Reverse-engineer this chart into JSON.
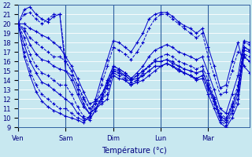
{
  "xlabel": "Température (°c)",
  "bg_color": "#c8e8f0",
  "grid_color": "#b0d0e0",
  "line_color": "#0000cc",
  "ylim": [
    9,
    22
  ],
  "yticks": [
    9,
    10,
    11,
    12,
    13,
    14,
    15,
    16,
    17,
    18,
    19,
    20,
    21,
    22
  ],
  "day_labels": [
    "Ven",
    "Sam",
    "Dim",
    "Lun",
    "Mar"
  ],
  "day_ticks_x": [
    0,
    8,
    16,
    24,
    32
  ],
  "xlim": [
    0,
    39
  ],
  "series": [
    [
      20.0,
      21.5,
      21.8,
      21.0,
      20.5,
      20.2,
      20.8,
      21.0,
      15.0,
      14.5,
      13.0,
      11.5,
      10.5,
      11.0,
      11.5,
      12.0,
      14.5,
      14.2,
      14.0,
      13.5,
      13.8,
      14.0,
      14.5,
      15.0,
      15.5,
      15.8,
      15.5,
      15.2,
      14.8,
      14.5,
      14.0,
      14.2,
      12.5,
      11.0,
      9.5,
      9.0,
      10.0,
      11.5,
      16.5,
      16.0
    ],
    [
      20.0,
      21.0,
      21.2,
      20.5,
      20.0,
      20.5,
      21.0,
      21.0,
      16.0,
      15.0,
      13.5,
      12.0,
      11.0,
      11.5,
      12.0,
      12.5,
      15.0,
      14.8,
      14.2,
      13.8,
      14.0,
      14.5,
      15.0,
      15.5,
      15.5,
      15.8,
      15.5,
      15.0,
      14.8,
      14.5,
      14.2,
      14.5,
      13.0,
      11.5,
      9.8,
      9.2,
      10.5,
      12.0,
      16.8,
      16.5
    ],
    [
      20.0,
      20.0,
      19.5,
      19.2,
      18.8,
      18.5,
      18.0,
      17.5,
      16.5,
      15.5,
      14.2,
      12.8,
      11.5,
      11.8,
      12.5,
      13.5,
      15.2,
      15.0,
      14.5,
      14.0,
      14.2,
      14.5,
      15.0,
      15.5,
      15.5,
      15.8,
      15.5,
      15.0,
      14.8,
      14.5,
      14.2,
      14.5,
      13.2,
      11.8,
      10.0,
      9.5,
      10.8,
      12.5,
      17.2,
      17.0
    ],
    [
      20.0,
      19.5,
      18.5,
      18.0,
      17.5,
      17.0,
      16.5,
      16.5,
      16.0,
      15.0,
      13.5,
      12.2,
      11.0,
      11.5,
      12.5,
      13.8,
      15.5,
      15.2,
      14.8,
      14.2,
      14.5,
      15.0,
      15.5,
      16.0,
      16.0,
      16.2,
      16.0,
      15.5,
      15.2,
      15.0,
      14.8,
      15.0,
      13.5,
      12.0,
      10.2,
      9.8,
      11.2,
      13.0,
      17.5,
      17.2
    ],
    [
      20.0,
      19.2,
      17.8,
      16.8,
      16.2,
      16.0,
      15.5,
      15.2,
      15.0,
      14.0,
      12.5,
      11.2,
      10.5,
      11.0,
      12.0,
      13.5,
      15.0,
      14.8,
      14.5,
      14.0,
      14.5,
      15.0,
      15.5,
      16.0,
      16.0,
      16.2,
      15.8,
      15.5,
      15.2,
      15.0,
      14.8,
      15.0,
      13.5,
      12.0,
      10.2,
      9.8,
      11.2,
      13.0,
      17.5,
      17.2
    ],
    [
      20.0,
      18.5,
      16.8,
      15.5,
      14.8,
      14.5,
      14.0,
      13.5,
      13.5,
      12.5,
      11.2,
      10.2,
      10.0,
      10.8,
      11.8,
      13.2,
      14.8,
      14.5,
      14.0,
      13.5,
      14.0,
      14.8,
      15.5,
      16.2,
      16.5,
      16.8,
      16.5,
      16.0,
      15.8,
      15.5,
      15.2,
      15.5,
      14.0,
      12.2,
      10.5,
      10.0,
      11.5,
      13.5,
      18.0,
      17.8
    ],
    [
      20.0,
      17.8,
      16.0,
      14.8,
      13.8,
      13.5,
      13.0,
      12.5,
      12.0,
      11.5,
      10.5,
      10.0,
      9.8,
      10.8,
      12.2,
      14.0,
      15.5,
      15.2,
      14.8,
      14.2,
      14.8,
      15.5,
      16.5,
      17.2,
      17.5,
      17.8,
      17.5,
      17.0,
      16.8,
      16.5,
      16.2,
      16.5,
      14.8,
      13.0,
      11.0,
      10.5,
      12.5,
      14.5,
      18.2,
      18.0
    ],
    [
      20.0,
      17.0,
      15.0,
      13.5,
      12.5,
      12.0,
      11.5,
      11.0,
      11.0,
      10.5,
      10.0,
      9.8,
      10.0,
      11.5,
      13.5,
      15.5,
      17.5,
      17.2,
      16.8,
      16.2,
      17.0,
      18.0,
      19.5,
      20.5,
      21.0,
      21.0,
      20.5,
      20.0,
      19.5,
      19.0,
      18.5,
      19.0,
      16.5,
      14.5,
      12.5,
      12.8,
      15.0,
      17.0,
      16.5,
      16.0
    ],
    [
      20.0,
      16.5,
      14.5,
      12.8,
      11.8,
      11.2,
      10.8,
      10.5,
      10.2,
      10.0,
      9.8,
      9.5,
      10.2,
      12.0,
      14.2,
      16.2,
      18.2,
      18.0,
      17.5,
      17.0,
      18.0,
      19.0,
      20.5,
      21.0,
      21.2,
      21.2,
      20.8,
      20.2,
      19.8,
      19.5,
      19.0,
      19.5,
      17.5,
      15.5,
      13.2,
      13.5,
      16.0,
      18.0,
      15.5,
      14.8
    ]
  ]
}
